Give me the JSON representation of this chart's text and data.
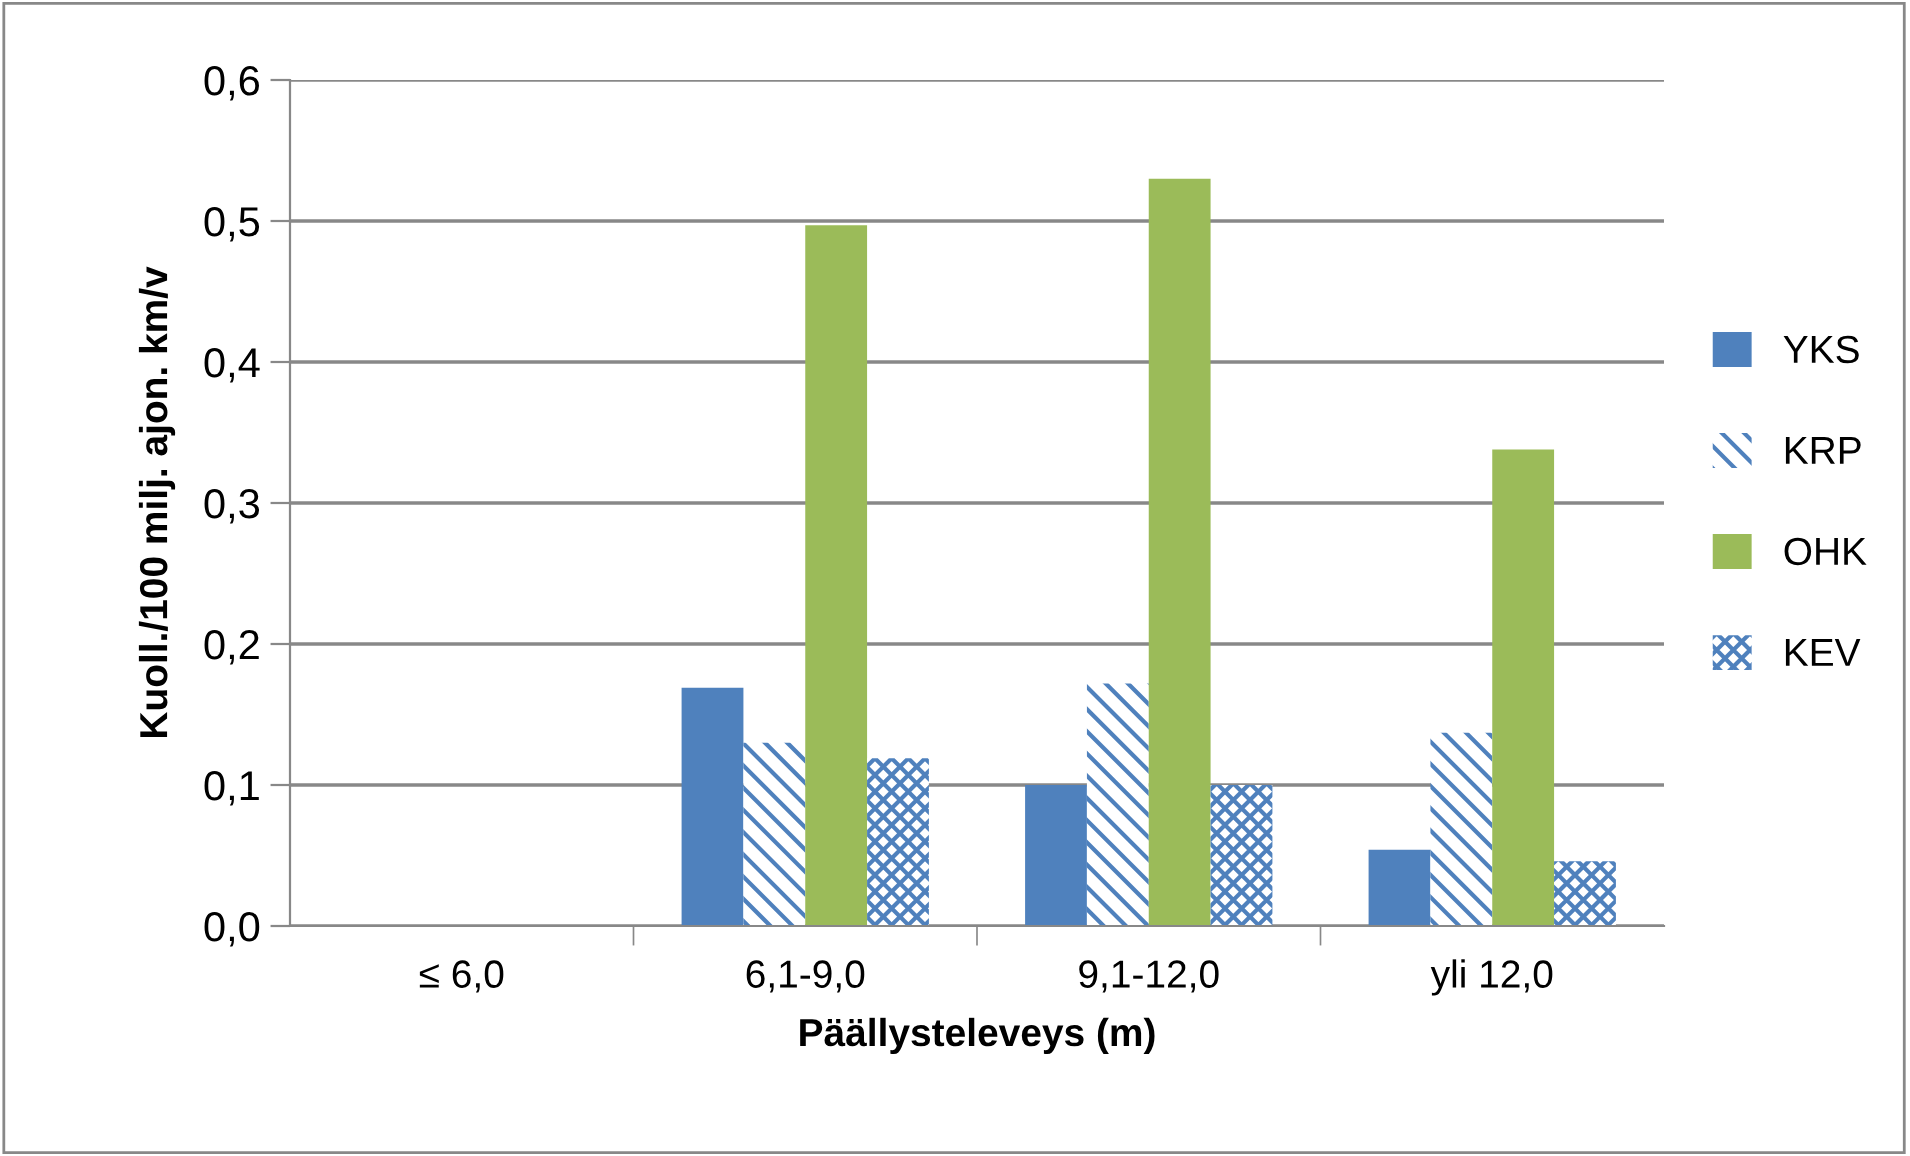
{
  "chart_data": {
    "type": "bar",
    "xlabel": "Päällysteleveys (m)",
    "ylabel": "Kuoll./100 milj. ajon. km/v",
    "categories": [
      "≤ 6,0",
      "6,1-9,0",
      "9,1-12,0",
      "yli 12,0"
    ],
    "series": [
      {
        "name": "YKS",
        "color": "#4f81bd",
        "values": [
          null,
          0.169,
          0.1,
          0.054
        ]
      },
      {
        "name": "KRP",
        "color": "#4f81bd",
        "values": [
          null,
          0.13,
          0.172,
          0.137
        ]
      },
      {
        "name": "OHK",
        "color": "#9bbb59",
        "values": [
          null,
          0.497,
          0.53,
          0.338
        ]
      },
      {
        "name": "KEV",
        "color": "#4f81bd",
        "values": [
          null,
          0.119,
          0.1,
          0.046
        ]
      }
    ],
    "ylim": [
      0,
      0.6
    ],
    "yticks": [
      {
        "value": 0,
        "label": "0,0"
      },
      {
        "value": 0.1,
        "label": "0,1"
      },
      {
        "value": 0.2,
        "label": "0,2"
      },
      {
        "value": 0.3,
        "label": "0,3"
      },
      {
        "value": 0.4,
        "label": "0,4"
      },
      {
        "value": 0.5,
        "label": "0,5"
      },
      {
        "value": 0.6,
        "label": "0,6"
      }
    ],
    "grid": "y",
    "legend": "right"
  }
}
